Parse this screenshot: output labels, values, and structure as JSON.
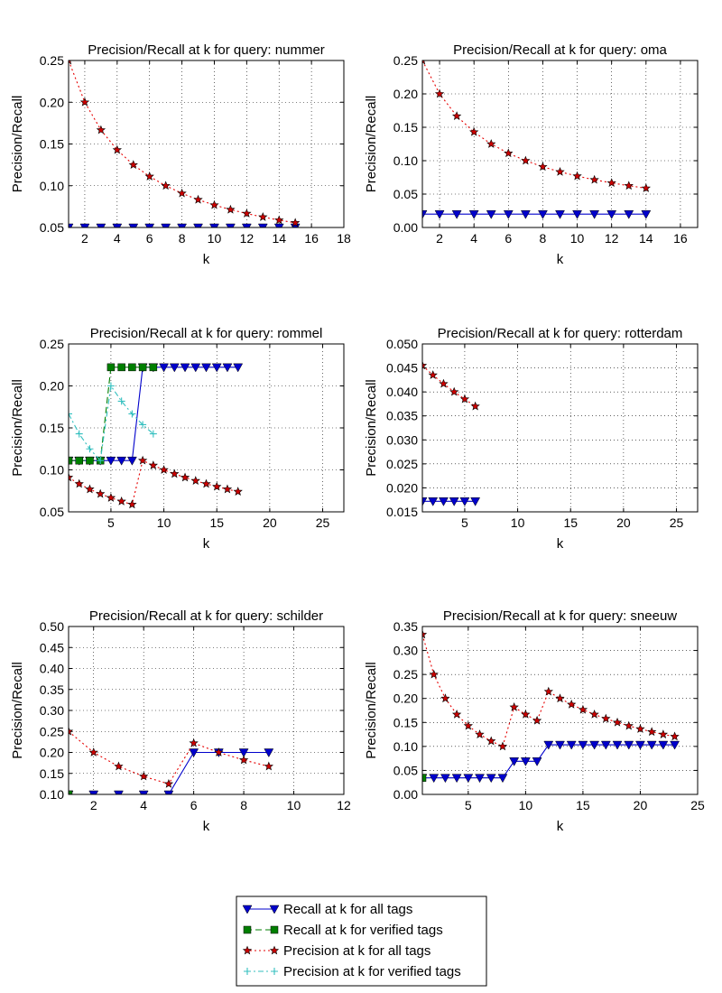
{
  "chart_data": [
    {
      "type": "line",
      "title": "Precision/Recall at k for query: nummer",
      "xlabel": "k",
      "ylabel": "Precision/Recall",
      "xlim": [
        1,
        18
      ],
      "ylim": [
        0.05,
        0.25
      ],
      "xticks": [
        2,
        4,
        6,
        8,
        10,
        12,
        14,
        16,
        18
      ],
      "yticks": [
        0.05,
        0.1,
        0.15,
        0.2,
        0.25
      ],
      "ytick_labels": [
        "0.05",
        "0.10",
        "0.15",
        "0.20",
        "0.25"
      ],
      "grid": true,
      "series": [
        {
          "name": "Recall at k for all tags",
          "x": [
            1,
            2,
            3,
            4,
            5,
            6,
            7,
            8,
            9,
            10,
            11,
            12,
            13,
            14,
            15
          ],
          "y": [
            0.05,
            0.05,
            0.05,
            0.05,
            0.05,
            0.05,
            0.05,
            0.05,
            0.05,
            0.05,
            0.05,
            0.05,
            0.05,
            0.05,
            0.05
          ]
        },
        {
          "name": "Precision at k for all tags",
          "x": [
            1,
            2,
            3,
            4,
            5,
            6,
            7,
            8,
            9,
            10,
            11,
            12,
            13,
            14,
            15
          ],
          "y": [
            0.25,
            0.2,
            0.1667,
            0.1429,
            0.125,
            0.1111,
            0.1,
            0.0909,
            0.0833,
            0.0769,
            0.0714,
            0.0667,
            0.0625,
            0.0588,
            0.0556
          ]
        }
      ]
    },
    {
      "type": "line",
      "title": "Precision/Recall at k for query: oma",
      "xlabel": "k",
      "ylabel": "Precision/Recall",
      "xlim": [
        1,
        17
      ],
      "ylim": [
        0.0,
        0.25
      ],
      "xticks": [
        2,
        4,
        6,
        8,
        10,
        12,
        14,
        16
      ],
      "yticks": [
        0.0,
        0.05,
        0.1,
        0.15,
        0.2,
        0.25
      ],
      "ytick_labels": [
        "0.00",
        "0.05",
        "0.10",
        "0.15",
        "0.20",
        "0.25"
      ],
      "grid": true,
      "series": [
        {
          "name": "Recall at k for all tags",
          "x": [
            1,
            2,
            3,
            4,
            5,
            6,
            7,
            8,
            9,
            10,
            11,
            12,
            13,
            14
          ],
          "y": [
            0.02,
            0.02,
            0.02,
            0.02,
            0.02,
            0.02,
            0.02,
            0.02,
            0.02,
            0.02,
            0.02,
            0.02,
            0.02,
            0.02
          ]
        },
        {
          "name": "Precision at k for all tags",
          "x": [
            1,
            2,
            3,
            4,
            5,
            6,
            7,
            8,
            9,
            10,
            11,
            12,
            13,
            14
          ],
          "y": [
            0.25,
            0.2,
            0.1667,
            0.1429,
            0.125,
            0.1111,
            0.1,
            0.0909,
            0.0833,
            0.0769,
            0.0714,
            0.0667,
            0.0625,
            0.0588
          ]
        }
      ]
    },
    {
      "type": "line",
      "title": "Precision/Recall at k for query: rommel",
      "xlabel": "k",
      "ylabel": "Precision/Recall",
      "xlim": [
        1,
        27
      ],
      "ylim": [
        0.05,
        0.25
      ],
      "xticks": [
        5,
        10,
        15,
        20,
        25
      ],
      "yticks": [
        0.05,
        0.1,
        0.15,
        0.2,
        0.25
      ],
      "ytick_labels": [
        "0.05",
        "0.10",
        "0.15",
        "0.20",
        "0.25"
      ],
      "grid": true,
      "series": [
        {
          "name": "Recall at k for all tags",
          "x": [
            1,
            2,
            3,
            4,
            5,
            6,
            7,
            8,
            9,
            10,
            11,
            12,
            13,
            14,
            15,
            16,
            17
          ],
          "y": [
            0.1111,
            0.1111,
            0.1111,
            0.1111,
            0.1111,
            0.1111,
            0.1111,
            0.2222,
            0.2222,
            0.2222,
            0.2222,
            0.2222,
            0.2222,
            0.2222,
            0.2222,
            0.2222,
            0.2222
          ]
        },
        {
          "name": "Recall at k for verified tags",
          "x": [
            1,
            2,
            3,
            4,
            5,
            6,
            7,
            8,
            9
          ],
          "y": [
            0.1111,
            0.1111,
            0.1111,
            0.1111,
            0.2222,
            0.2222,
            0.2222,
            0.2222,
            0.2222
          ]
        },
        {
          "name": "Precision at k for all tags",
          "x": [
            1,
            2,
            3,
            4,
            5,
            6,
            7,
            8,
            9,
            10,
            11,
            12,
            13,
            14,
            15,
            16,
            17
          ],
          "y": [
            0.0909,
            0.0833,
            0.0769,
            0.0714,
            0.0667,
            0.0625,
            0.0588,
            0.1111,
            0.1053,
            0.1,
            0.0952,
            0.0909,
            0.087,
            0.0833,
            0.08,
            0.0769,
            0.0741
          ]
        },
        {
          "name": "Precision at k for verified tags",
          "x": [
            1,
            2,
            3,
            4,
            5,
            6,
            7,
            8,
            9
          ],
          "y": [
            0.1667,
            0.1429,
            0.125,
            0.1111,
            0.2,
            0.1818,
            0.1667,
            0.1538,
            0.1429
          ]
        }
      ]
    },
    {
      "type": "line",
      "title": "Precision/Recall at k for query: rotterdam",
      "xlabel": "k",
      "ylabel": "Precision/Recall",
      "xlim": [
        1,
        27
      ],
      "ylim": [
        0.015,
        0.05
      ],
      "xticks": [
        5,
        10,
        15,
        20,
        25
      ],
      "yticks": [
        0.015,
        0.02,
        0.025,
        0.03,
        0.035,
        0.04,
        0.045,
        0.05
      ],
      "ytick_labels": [
        "0.015",
        "0.020",
        "0.025",
        "0.030",
        "0.035",
        "0.040",
        "0.045",
        "0.050"
      ],
      "grid": true,
      "series": [
        {
          "name": "Recall at k for all tags",
          "x": [
            1,
            2,
            3,
            4,
            5,
            6
          ],
          "y": [
            0.0172,
            0.0172,
            0.0172,
            0.0172,
            0.0172,
            0.0172
          ]
        },
        {
          "name": "Precision at k for all tags",
          "x": [
            1,
            2,
            3,
            4,
            5,
            6
          ],
          "y": [
            0.0455,
            0.0435,
            0.0417,
            0.04,
            0.0385,
            0.037
          ]
        }
      ]
    },
    {
      "type": "line",
      "title": "Precision/Recall at k for query: schilder",
      "xlabel": "k",
      "ylabel": "Precision/Recall",
      "xlim": [
        1,
        12
      ],
      "ylim": [
        0.1,
        0.5
      ],
      "xticks": [
        2,
        4,
        6,
        8,
        10,
        12
      ],
      "yticks": [
        0.1,
        0.15,
        0.2,
        0.25,
        0.3,
        0.35,
        0.4,
        0.45,
        0.5
      ],
      "ytick_labels": [
        "0.10",
        "0.15",
        "0.20",
        "0.25",
        "0.30",
        "0.35",
        "0.40",
        "0.45",
        "0.50"
      ],
      "grid": true,
      "series": [
        {
          "name": "Recall at k for all tags",
          "x": [
            1,
            2,
            3,
            4,
            5,
            6,
            7,
            8,
            9
          ],
          "y": [
            0.1,
            0.1,
            0.1,
            0.1,
            0.1,
            0.2,
            0.2,
            0.2,
            0.2
          ]
        },
        {
          "name": "Recall at k for verified tags",
          "x": [
            1
          ],
          "y": [
            0.1
          ]
        },
        {
          "name": "Precision at k for all tags",
          "x": [
            1,
            2,
            3,
            4,
            5,
            6,
            7,
            8,
            9
          ],
          "y": [
            0.25,
            0.2,
            0.1667,
            0.1429,
            0.125,
            0.2222,
            0.2,
            0.1818,
            0.1667
          ]
        }
      ]
    },
    {
      "type": "line",
      "title": "Precision/Recall at k for query: sneeuw",
      "xlabel": "k",
      "ylabel": "Precision/Recall",
      "xlim": [
        1,
        25
      ],
      "ylim": [
        0.0,
        0.35
      ],
      "xticks": [
        5,
        10,
        15,
        20,
        25
      ],
      "yticks": [
        0.0,
        0.05,
        0.1,
        0.15,
        0.2,
        0.25,
        0.3,
        0.35
      ],
      "ytick_labels": [
        "0.00",
        "0.05",
        "0.10",
        "0.15",
        "0.20",
        "0.25",
        "0.30",
        "0.35"
      ],
      "grid": true,
      "series": [
        {
          "name": "Recall at k for all tags",
          "x": [
            1,
            2,
            3,
            4,
            5,
            6,
            7,
            8,
            9,
            10,
            11,
            12,
            13,
            14,
            15,
            16,
            17,
            18,
            19,
            20,
            21,
            22,
            23
          ],
          "y": [
            0.0345,
            0.0345,
            0.0345,
            0.0345,
            0.0345,
            0.0345,
            0.0345,
            0.0345,
            0.069,
            0.069,
            0.069,
            0.1034,
            0.1034,
            0.1034,
            0.1034,
            0.1034,
            0.1034,
            0.1034,
            0.1034,
            0.1034,
            0.1034,
            0.1034,
            0.1034
          ]
        },
        {
          "name": "Recall at k for verified tags",
          "x": [
            1
          ],
          "y": [
            0.0345
          ]
        },
        {
          "name": "Precision at k for all tags",
          "x": [
            1,
            2,
            3,
            4,
            5,
            6,
            7,
            8,
            9,
            10,
            11,
            12,
            13,
            14,
            15,
            16,
            17,
            18,
            19,
            20,
            21,
            22,
            23
          ],
          "y": [
            0.3333,
            0.25,
            0.2,
            0.1667,
            0.1429,
            0.125,
            0.1111,
            0.1,
            0.1818,
            0.1667,
            0.1538,
            0.2143,
            0.2,
            0.1875,
            0.1765,
            0.1667,
            0.1579,
            0.15,
            0.1429,
            0.1364,
            0.1304,
            0.125,
            0.1207
          ]
        }
      ]
    }
  ],
  "legend": {
    "placement": "bottom-center",
    "entries": [
      {
        "key": "recall_all",
        "label": "Recall at k for all tags"
      },
      {
        "key": "recall_verified",
        "label": "Recall at k for verified tags"
      },
      {
        "key": "precision_all",
        "label": "Precision at k for all tags"
      },
      {
        "key": "precision_verified",
        "label": "Precision at k for verified tags"
      }
    ]
  },
  "colors": {
    "Recall at k for all tags": "#0000cc",
    "Recall at k for verified tags": "#007f00",
    "Precision at k for all tags": "#e60000",
    "Precision at k for verified tags": "#33bfbf"
  }
}
